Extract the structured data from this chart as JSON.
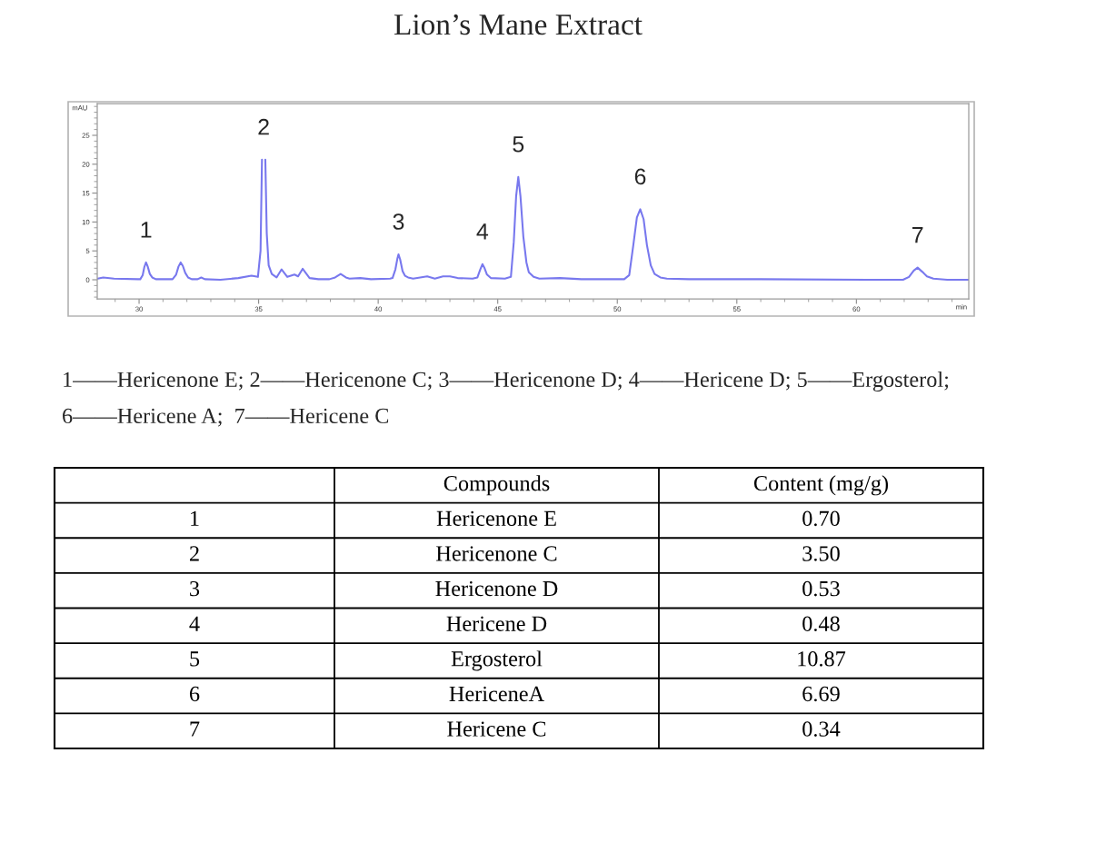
{
  "chart_data": [
    {
      "type": "line",
      "title": "Lion’s Mane Extract",
      "xlabel": "min",
      "ylabel": "mAU",
      "xlim": [
        28.25,
        64.7
      ],
      "ylim": [
        -3.3,
        30.5
      ],
      "xticks": [
        {
          "value": 29,
          "label": null
        },
        30,
        {
          "value": 31,
          "label": null
        },
        {
          "value": 32,
          "label": null
        },
        {
          "value": 33,
          "label": null
        },
        {
          "value": 34,
          "label": null
        },
        35,
        {
          "value": 36,
          "label": null
        },
        {
          "value": 37,
          "label": null
        },
        {
          "value": 38,
          "label": null
        },
        {
          "value": 39,
          "label": null
        },
        40,
        {
          "value": 41,
          "label": null
        },
        {
          "value": 42,
          "label": null
        },
        {
          "value": 43,
          "label": null
        },
        {
          "value": 44,
          "label": null
        },
        45,
        {
          "value": 46,
          "label": null
        },
        {
          "value": 47,
          "label": null
        },
        {
          "value": 48,
          "label": null
        },
        {
          "value": 49,
          "label": null
        },
        50,
        {
          "value": 51,
          "label": null
        },
        {
          "value": 52,
          "label": null
        },
        {
          "value": 53,
          "label": null
        },
        {
          "value": 54,
          "label": null
        },
        55,
        {
          "value": 56,
          "label": null
        },
        {
          "value": 57,
          "label": null
        },
        {
          "value": 58,
          "label": null
        },
        {
          "value": 59,
          "label": null
        },
        60,
        {
          "value": 61,
          "label": null
        },
        {
          "value": 62,
          "label": null
        },
        {
          "value": 63,
          "label": null
        },
        {
          "value": 64,
          "label": null
        }
      ],
      "yticks": [
        {
          "value": -3,
          "label": null
        },
        {
          "value": -2,
          "label": null
        },
        {
          "value": -1,
          "label": null
        },
        0,
        {
          "value": 1,
          "label": null
        },
        {
          "value": 2,
          "label": null
        },
        {
          "value": 3,
          "label": null
        },
        {
          "value": 4,
          "label": null
        },
        5,
        {
          "value": 6,
          "label": null
        },
        {
          "value": 7,
          "label": null
        },
        {
          "value": 8,
          "label": null
        },
        {
          "value": 9,
          "label": null
        },
        10,
        {
          "value": 11,
          "label": null
        },
        {
          "value": 12,
          "label": null
        },
        {
          "value": 13,
          "label": null
        },
        {
          "value": 14,
          "label": null
        },
        15,
        {
          "value": 16,
          "label": null
        },
        {
          "value": 17,
          "label": null
        },
        {
          "value": 18,
          "label": null
        },
        {
          "value": 19,
          "label": null
        },
        20,
        {
          "value": 21,
          "label": null
        },
        {
          "value": 22,
          "label": null
        },
        {
          "value": 23,
          "label": null
        },
        {
          "value": 24,
          "label": null
        },
        25,
        {
          "value": 26,
          "label": null
        },
        {
          "value": 27,
          "label": null
        },
        {
          "value": 28,
          "label": null
        },
        {
          "value": 29,
          "label": null
        },
        {
          "value": 30,
          "label": null
        }
      ],
      "series": [
        {
          "color": "#7878ee",
          "x": [
            28.27,
            28.5,
            28.95,
            29.96,
            30.05,
            30.15,
            30.22,
            30.29,
            30.36,
            30.45,
            30.55,
            30.7,
            31.4,
            31.55,
            31.65,
            31.74,
            31.83,
            31.93,
            32.05,
            32.2,
            32.45,
            32.6,
            32.75,
            33.4,
            34.15,
            34.7,
            34.97,
            35.08,
            35.14,
            35.21,
            35.28,
            35.34,
            35.42,
            35.55,
            35.75,
            35.96,
            36.2,
            36.5,
            36.65,
            36.84,
            37.13,
            37.5,
            37.96,
            38.2,
            38.43,
            38.65,
            38.8,
            39.25,
            39.7,
            40.5,
            40.6,
            40.72,
            40.8,
            40.85,
            40.92,
            41.02,
            41.12,
            41.25,
            41.46,
            42.05,
            42.37,
            42.71,
            43.0,
            43.32,
            43.95,
            44.15,
            44.27,
            44.36,
            44.45,
            44.55,
            44.71,
            45.3,
            45.55,
            45.67,
            45.77,
            45.86,
            45.95,
            46.07,
            46.2,
            46.3,
            46.5,
            46.74,
            47.6,
            48.5,
            50.29,
            50.5,
            50.67,
            50.82,
            50.96,
            51.1,
            51.24,
            51.4,
            51.56,
            51.8,
            52.07,
            53,
            56,
            60.43,
            61.95,
            62.2,
            62.4,
            62.56,
            62.75,
            62.95,
            63.22,
            63.8,
            64.7
          ],
          "values": [
            0.2,
            0.4,
            0.2,
            0.1,
            0.1,
            0.8,
            2.2,
            3.0,
            2.3,
            1.0,
            0.4,
            0.1,
            0.1,
            0.9,
            2.3,
            3.0,
            2.4,
            1.2,
            0.4,
            0.1,
            0.1,
            0.4,
            0.1,
            0.0,
            0.3,
            0.7,
            0.5,
            5.0,
            20.8,
            null,
            20.8,
            8.0,
            2.5,
            1.0,
            0.4,
            1.8,
            0.5,
            0.9,
            0.6,
            1.9,
            0.3,
            0.1,
            0.1,
            0.4,
            1.0,
            0.4,
            0.2,
            0.3,
            0.1,
            0.2,
            0.3,
            1.8,
            3.6,
            4.4,
            3.5,
            1.5,
            0.7,
            0.4,
            0.2,
            0.6,
            0.2,
            0.6,
            0.6,
            0.3,
            0.2,
            0.4,
            1.8,
            2.7,
            2.0,
            0.9,
            0.3,
            0.2,
            0.5,
            6.5,
            14.5,
            17.8,
            14.5,
            7.5,
            3.0,
            1.3,
            0.5,
            0.2,
            0.3,
            0.1,
            0.1,
            0.8,
            6.0,
            10.8,
            12.2,
            10.5,
            6.0,
            2.5,
            1.0,
            0.4,
            0.2,
            0.1,
            0.1,
            0.0,
            0.0,
            0.5,
            1.6,
            2.1,
            1.4,
            0.6,
            0.2,
            0.0,
            0.0
          ]
        }
      ],
      "annotations": [
        {
          "text": "1",
          "x": 30.29,
          "y": 3.0
        },
        {
          "text": "2",
          "x": 35.21,
          "y": 20.8
        },
        {
          "text": "3",
          "x": 40.85,
          "y": 4.4
        },
        {
          "text": "4",
          "x": 44.36,
          "y": 2.7
        },
        {
          "text": "5",
          "x": 45.86,
          "y": 17.8
        },
        {
          "text": "6",
          "x": 50.96,
          "y": 12.2
        },
        {
          "text": "7",
          "x": 62.56,
          "y": 2.1
        },
        "1——Hericenone E; 2——Hericenone C; 3——Hericenone D; 4——Hericene D; 5——Ergosterol;",
        "6——Hericene A;  7——Hericene C"
      ]
    },
    {
      "type": "heatmap",
      "grid": true,
      "categories": [
        "Compounds",
        "Content (mg/g)"
      ],
      "y_categories": [
        "1",
        "2",
        "3",
        "4",
        "5",
        "6",
        "7"
      ],
      "cells": [
        [
          null,
          0.7
        ],
        [
          null,
          3.5
        ],
        [
          null,
          0.53
        ],
        [
          null,
          0.48
        ],
        [
          null,
          10.87
        ],
        [
          null,
          6.69
        ],
        [
          null,
          0.34
        ]
      ],
      "cell_labels": [
        [
          "Hericenone E",
          "0.70"
        ],
        [
          "Hericenone C",
          "3.50"
        ],
        [
          "Hericenone D",
          "0.53"
        ],
        [
          "Hericene D",
          "0.48"
        ],
        [
          "Ergosterol",
          "10.87"
        ],
        [
          "HericeneA",
          "6.69"
        ],
        [
          "Hericene C",
          "0.34"
        ]
      ]
    }
  ]
}
